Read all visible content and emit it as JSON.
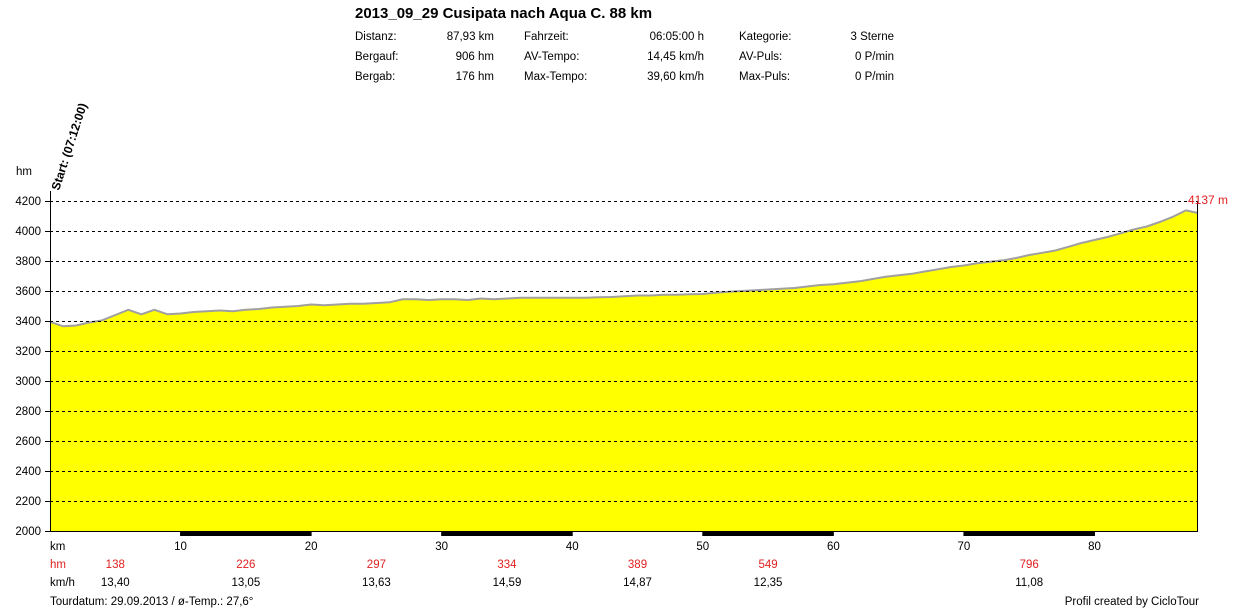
{
  "title": "2013_09_29 Cusipata nach Aqua C. 88 km",
  "stats": [
    {
      "label": "Distanz:",
      "value": "87,93 km"
    },
    {
      "label": "Bergauf:",
      "value": "906 hm"
    },
    {
      "label": "Bergab:",
      "value": "176 hm"
    },
    {
      "label": "Fahrzeit:",
      "value": "06:05:00 h"
    },
    {
      "label": "AV-Tempo:",
      "value": "14,45 km/h"
    },
    {
      "label": "Max-Tempo:",
      "value": "39,60 km/h"
    },
    {
      "label": "Kategorie:",
      "value": "3 Sterne"
    },
    {
      "label": "AV-Puls:",
      "value": "0 P/min"
    },
    {
      "label": "Max-Puls:",
      "value": "0 P/min"
    }
  ],
  "start_label": "Start: (07:12:00)",
  "max_label": "4137 m",
  "footer": {
    "left": "Tourdatum: 29.09.2013  /  ø-Temp.: 27,6°",
    "right": "Profil created by CicloTour"
  },
  "colors": {
    "fill": "#ffff00",
    "line": "#a0a0a0",
    "accent": "#e02020",
    "grid": "#000000"
  },
  "chart_data": {
    "type": "area",
    "title": "2013_09_29 Cusipata nach Aqua C. 88 km",
    "ylabel": "hm",
    "xlabel": "km",
    "ylim": [
      2000,
      4200
    ],
    "xlim": [
      0,
      87.93
    ],
    "yticks": [
      2000,
      2200,
      2400,
      2600,
      2800,
      3000,
      3200,
      3400,
      3600,
      3800,
      4000,
      4200
    ],
    "xticks": [
      10,
      20,
      30,
      40,
      50,
      60,
      70,
      80
    ],
    "grid": true,
    "x": [
      0,
      1,
      2,
      3,
      4,
      5,
      6,
      7,
      8,
      9,
      10,
      11,
      12,
      13,
      14,
      15,
      16,
      17,
      18,
      19,
      20,
      21,
      22,
      23,
      24,
      25,
      26,
      27,
      28,
      29,
      30,
      31,
      32,
      33,
      34,
      35,
      36,
      37,
      38,
      39,
      40,
      41,
      42,
      43,
      44,
      45,
      46,
      47,
      48,
      49,
      50,
      51,
      52,
      53,
      54,
      55,
      56,
      57,
      58,
      59,
      60,
      61,
      62,
      63,
      64,
      65,
      66,
      67,
      68,
      69,
      70,
      71,
      72,
      73,
      74,
      75,
      76,
      77,
      78,
      79,
      80,
      81,
      82,
      83,
      84,
      85,
      86,
      87,
      87.93
    ],
    "y": [
      3395,
      3365,
      3370,
      3390,
      3405,
      3440,
      3475,
      3445,
      3475,
      3445,
      3450,
      3460,
      3465,
      3470,
      3465,
      3475,
      3480,
      3490,
      3495,
      3500,
      3510,
      3505,
      3510,
      3515,
      3515,
      3520,
      3525,
      3545,
      3545,
      3540,
      3545,
      3545,
      3540,
      3550,
      3545,
      3550,
      3555,
      3555,
      3555,
      3555,
      3555,
      3555,
      3558,
      3560,
      3565,
      3570,
      3570,
      3575,
      3575,
      3578,
      3580,
      3588,
      3595,
      3600,
      3605,
      3610,
      3615,
      3620,
      3630,
      3640,
      3645,
      3655,
      3665,
      3680,
      3695,
      3705,
      3715,
      3730,
      3745,
      3760,
      3770,
      3785,
      3795,
      3805,
      3820,
      3840,
      3855,
      3870,
      3895,
      3920,
      3940,
      3960,
      3985,
      4010,
      4030,
      4060,
      4095,
      4137,
      4120
    ],
    "segments": [
      {
        "km": "10",
        "hm": "138",
        "kmh": "13,40"
      },
      {
        "km": "20",
        "hm": "226",
        "kmh": "13,05"
      },
      {
        "km": "30",
        "hm": "297",
        "kmh": "13,63"
      },
      {
        "km": "40",
        "hm": "334",
        "kmh": "14,59"
      },
      {
        "km": "50",
        "hm": "389",
        "kmh": "14,87"
      },
      {
        "km": "60",
        "hm": "549",
        "kmh": "12,35"
      },
      {
        "km": "80",
        "hm": "796",
        "kmh": "11,08"
      }
    ],
    "row_labels": {
      "km": "km",
      "hm": "hm",
      "kmh": "km/h"
    }
  }
}
